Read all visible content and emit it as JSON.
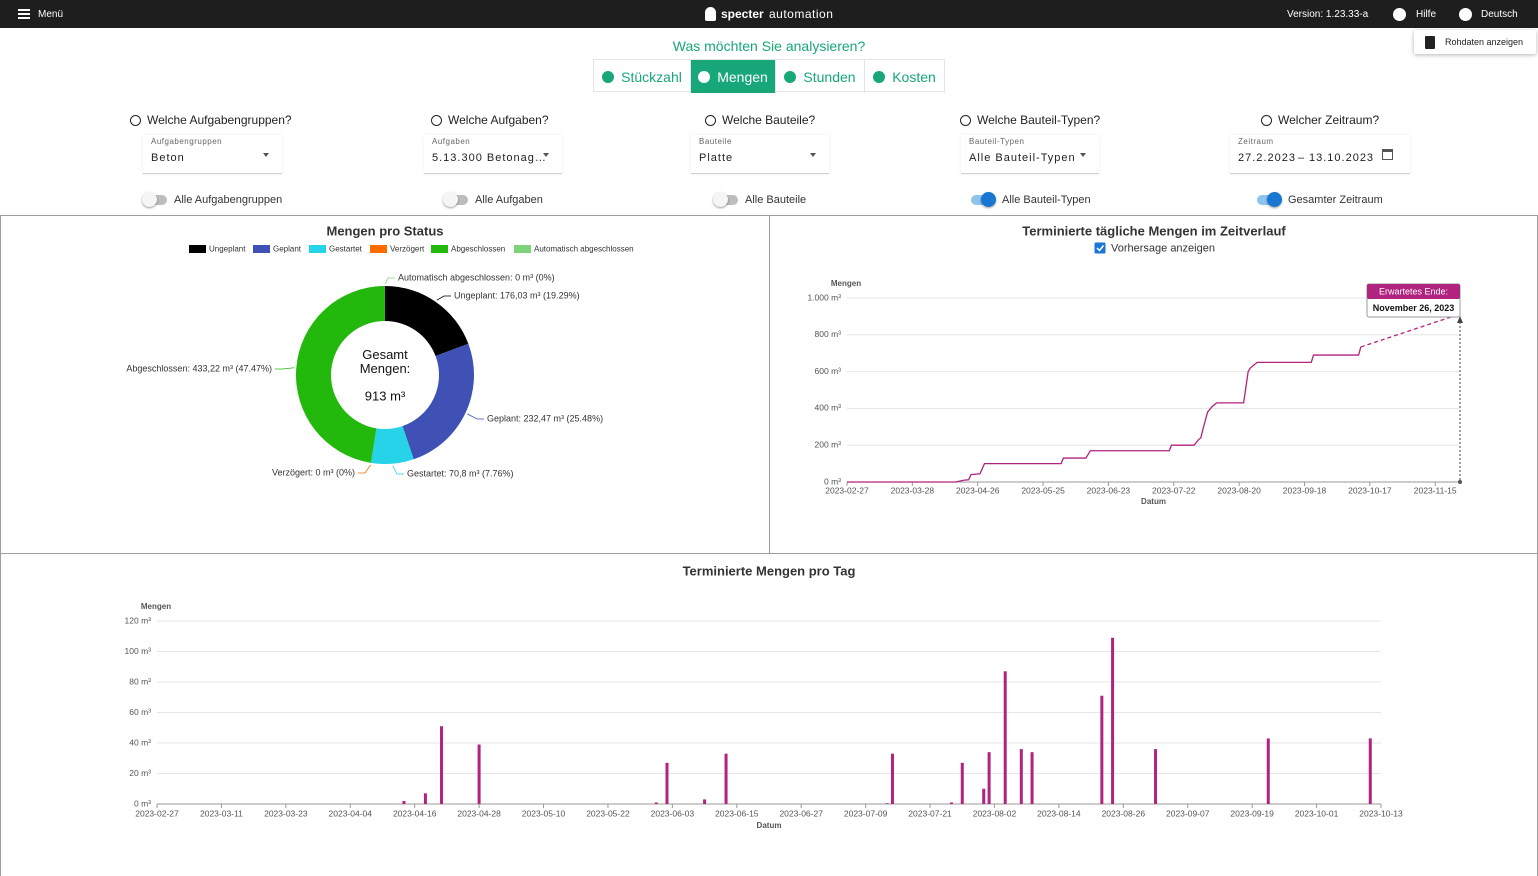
{
  "header": {
    "menu": "Menü",
    "brand": {
      "name": "specter",
      "suffix": "automation"
    },
    "version": "Version: 1.23.33-a",
    "help": "Hilfe",
    "language": "Deutsch"
  },
  "raw_data_button": "Rohdaten anzeigen",
  "question": "Was möchten Sie analysieren?",
  "tabs": {
    "items": [
      "Stückzahl",
      "Mengen",
      "Stunden",
      "Kosten"
    ],
    "active": 1
  },
  "filters": [
    {
      "title": "Welche Aufgabengruppen?",
      "field_label": "Aufgabengruppen",
      "value": "Beton",
      "toggle_label": "Alle Aufgabengruppen",
      "toggle_on": false
    },
    {
      "title": "Welche Aufgaben?",
      "field_label": "Aufgaben",
      "value": "5.13.300 Betonag…",
      "toggle_label": "Alle Aufgaben",
      "toggle_on": false
    },
    {
      "title": "Welche Bauteile?",
      "field_label": "Bauteile",
      "value": "Platte",
      "toggle_label": "Alle Bauteile",
      "toggle_on": false
    },
    {
      "title": "Welche Bauteil-Typen?",
      "field_label": "Bauteil-Typen",
      "value": "Alle Bauteil-Typen",
      "toggle_label": "Alle Bauteil-Typen",
      "toggle_on": true
    },
    {
      "title": "Welcher Zeitraum?",
      "field_label": "Zeitraum",
      "from": "27.2.2023",
      "separator": "–",
      "to": "13.10.2023",
      "toggle_label": "Gesamter Zeitraum",
      "toggle_on": true
    }
  ],
  "chart_data": [
    {
      "type": "pie",
      "title": "Mengen pro Status",
      "donut": true,
      "categories": [
        "Ungeplant",
        "Geplant",
        "Gestartet",
        "Verzögert",
        "Abgeschlossen",
        "Automatisch abgeschlossen"
      ],
      "values": [
        176.03,
        232.47,
        70.8,
        0,
        433.22,
        0
      ],
      "value_labels": [
        "Ungeplant: 176,03 m³ (19.29%)",
        "Geplant: 232,47 m³ (25.48%)",
        "Gestartet: 70,8 m³ (7.76%)",
        "Verzögert: 0 m³ (0%)",
        "Abgeschlossen: 433,22 m³ (47.47%)",
        "Automatisch abgeschlossen: 0 m³ (0%)"
      ],
      "colors": [
        "#000000",
        "#3f51b5",
        "#26d3e8",
        "#ff6d00",
        "#23b80c",
        "#7ed27a"
      ],
      "center_title": "Gesamt Mengen:",
      "center_label": "913 m³"
    },
    {
      "type": "line",
      "title": "Terminierte tägliche Mengen im Zeitverlauf",
      "forecast_toggle": {
        "label": "Vorhersage anzeigen",
        "checked": true
      },
      "y_label": "Mengen",
      "x_label": "Datum",
      "x": [
        "2023-02-27",
        "2023-04-16",
        "2023-04-18",
        "2023-04-20",
        "2023-04-22",
        "2023-04-23",
        "2023-04-27",
        "2023-04-29",
        "2023-06-02",
        "2023-06-03",
        "2023-06-13",
        "2023-06-15",
        "2023-07-20",
        "2023-07-21",
        "2023-07-31",
        "2023-08-02",
        "2023-08-03",
        "2023-08-04",
        "2023-08-06",
        "2023-08-08",
        "2023-08-10",
        "2023-08-22",
        "2023-08-24",
        "2023-08-25",
        "2023-08-28",
        "2023-09-21",
        "2023-09-22",
        "2023-10-12",
        "2023-10-13",
        "2023-11-26"
      ],
      "series": [
        {
          "color": "#b0237f",
          "dashed": false,
          "values": [
            0,
            0,
            5,
            10,
            12,
            40,
            45,
            100,
            100,
            130,
            130,
            170,
            170,
            200,
            200,
            230,
            240,
            290,
            380,
            410,
            430,
            430,
            600,
            620,
            650,
            650,
            690,
            690,
            734,
            null
          ]
        },
        {
          "color": "#b0237f",
          "dashed": true,
          "values": [
            null,
            null,
            null,
            null,
            null,
            null,
            null,
            null,
            null,
            null,
            null,
            null,
            null,
            null,
            null,
            null,
            null,
            null,
            null,
            null,
            null,
            null,
            null,
            null,
            null,
            null,
            null,
            null,
            734,
            913
          ]
        }
      ],
      "xlim": [
        "2023-02-27",
        "2023-11-26"
      ],
      "xticks": [
        "2023-02-27",
        "2023-03-28",
        "2023-04-26",
        "2023-05-25",
        "2023-06-23",
        "2023-07-22",
        "2023-08-20",
        "2023-09-18",
        "2023-10-17",
        "2023-11-15"
      ],
      "ylim": [
        0,
        1000
      ],
      "yticks": [
        {
          "value": 0,
          "label": "0 m³"
        },
        {
          "value": 200,
          "label": "200 m³"
        },
        {
          "value": 400,
          "label": "400 m³"
        },
        {
          "value": 600,
          "label": "600 m³"
        },
        {
          "value": 800,
          "label": "800 m³"
        },
        {
          "value": 1000,
          "label": "1.000 m³"
        }
      ],
      "grid": true,
      "annotation": {
        "x": "2023-11-26",
        "title": "Erwartetes Ende:",
        "label": "November 26, 2023"
      }
    },
    {
      "type": "bar",
      "title": "Terminierte Mengen pro Tag",
      "y_label": "Mengen",
      "x_label": "Datum",
      "color": "#b0237f",
      "x": [
        "2023-04-14",
        "2023-04-18",
        "2023-04-21",
        "2023-04-28",
        "2023-05-31",
        "2023-06-02",
        "2023-06-09",
        "2023-06-13",
        "2023-07-13",
        "2023-07-14",
        "2023-07-25",
        "2023-07-27",
        "2023-07-31",
        "2023-08-01",
        "2023-08-04",
        "2023-08-07",
        "2023-08-09",
        "2023-08-22",
        "2023-08-24",
        "2023-09-01",
        "2023-09-22",
        "2023-10-11"
      ],
      "values": [
        2,
        7,
        51,
        39,
        1,
        27,
        3,
        33,
        0.5,
        33,
        1,
        27,
        10,
        34,
        87,
        36,
        34,
        71,
        109,
        36,
        43,
        43
      ],
      "xlim": [
        "2023-02-27",
        "2023-10-13"
      ],
      "xticks": [
        "2023-02-27",
        "2023-03-11",
        "2023-03-23",
        "2023-04-04",
        "2023-04-16",
        "2023-04-28",
        "2023-05-10",
        "2023-05-22",
        "2023-06-03",
        "2023-06-15",
        "2023-06-27",
        "2023-07-09",
        "2023-07-21",
        "2023-08-02",
        "2023-08-14",
        "2023-08-26",
        "2023-09-07",
        "2023-09-19",
        "2023-10-01",
        "2023-10-13"
      ],
      "ylim": [
        0,
        120
      ],
      "yticks": [
        {
          "value": 0,
          "label": "0 m³"
        },
        {
          "value": 20,
          "label": "20 m³"
        },
        {
          "value": 40,
          "label": "40 m³"
        },
        {
          "value": 60,
          "label": "60 m³"
        },
        {
          "value": 80,
          "label": "80 m³"
        },
        {
          "value": 100,
          "label": "100 m³"
        },
        {
          "value": 120,
          "label": "120 m³"
        }
      ],
      "grid": true
    }
  ]
}
